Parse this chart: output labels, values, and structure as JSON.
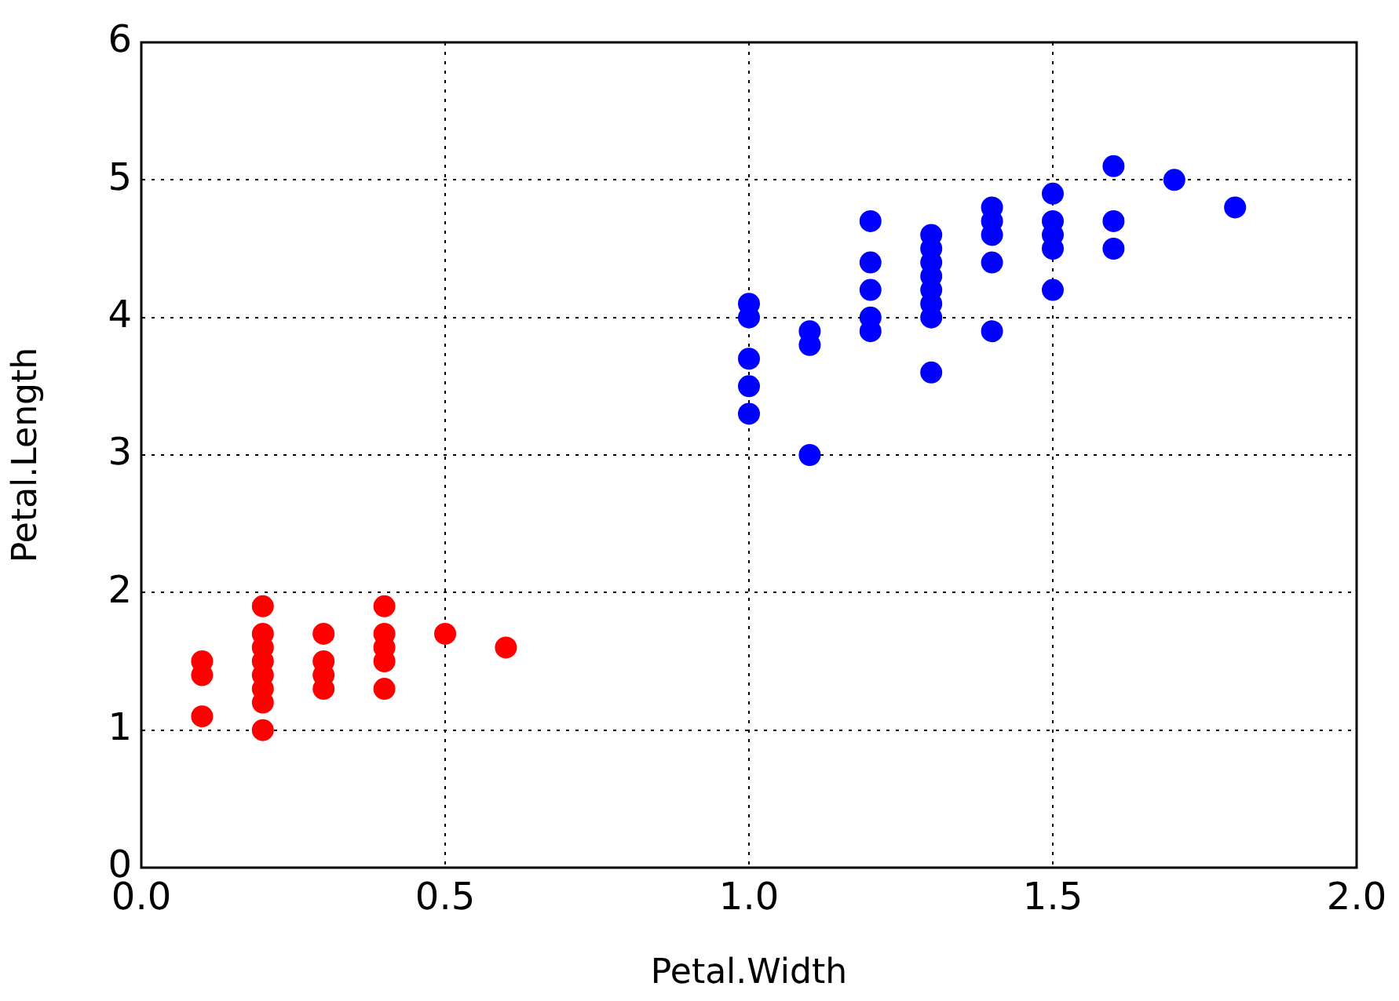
{
  "chart_data": {
    "type": "scatter",
    "xlabel": "Petal.Width",
    "ylabel": "Petal.Length",
    "xlim": [
      0,
      2
    ],
    "xticks": [
      {
        "value": 0,
        "label": "0.0"
      },
      {
        "value": 0.5,
        "label": "0.5"
      },
      {
        "value": 1,
        "label": "1.0"
      },
      {
        "value": 1.5,
        "label": "1.5"
      },
      {
        "value": 2,
        "label": "2.0"
      }
    ],
    "ylim": [
      0,
      6
    ],
    "yticks": [
      0,
      1,
      2,
      3,
      4,
      5,
      6
    ],
    "grid": true,
    "legend": false,
    "marker": "circle",
    "series": [
      {
        "color": "#ff0000",
        "x": [
          0.1,
          0.1,
          0.1,
          0.2,
          0.2,
          0.2,
          0.2,
          0.2,
          0.2,
          0.2,
          0.2,
          0.3,
          0.3,
          0.3,
          0.3,
          0.4,
          0.4,
          0.4,
          0.4,
          0.4,
          0.5,
          0.6
        ],
        "values": [
          1.5,
          1.4,
          1.1,
          1.0,
          1.2,
          1.3,
          1.4,
          1.5,
          1.6,
          1.7,
          1.9,
          1.3,
          1.4,
          1.5,
          1.7,
          1.3,
          1.5,
          1.6,
          1.7,
          1.9,
          1.7,
          1.6
        ]
      },
      {
        "color": "#0000ff",
        "x": [
          1.0,
          1.0,
          1.0,
          1.0,
          1.0,
          1.1,
          1.1,
          1.1,
          1.2,
          1.2,
          1.2,
          1.2,
          1.2,
          1.3,
          1.3,
          1.3,
          1.3,
          1.3,
          1.3,
          1.3,
          1.3,
          1.4,
          1.4,
          1.4,
          1.4,
          1.4,
          1.5,
          1.5,
          1.5,
          1.5,
          1.5,
          1.6,
          1.6,
          1.6,
          1.7,
          1.8
        ],
        "values": [
          3.3,
          3.5,
          3.7,
          4.0,
          4.1,
          3.0,
          3.8,
          3.9,
          3.9,
          4.0,
          4.2,
          4.4,
          4.7,
          3.6,
          4.0,
          4.1,
          4.2,
          4.3,
          4.4,
          4.5,
          4.6,
          3.9,
          4.4,
          4.6,
          4.7,
          4.8,
          4.2,
          4.5,
          4.6,
          4.7,
          4.9,
          4.5,
          4.7,
          5.1,
          5.0,
          4.8
        ]
      }
    ]
  }
}
